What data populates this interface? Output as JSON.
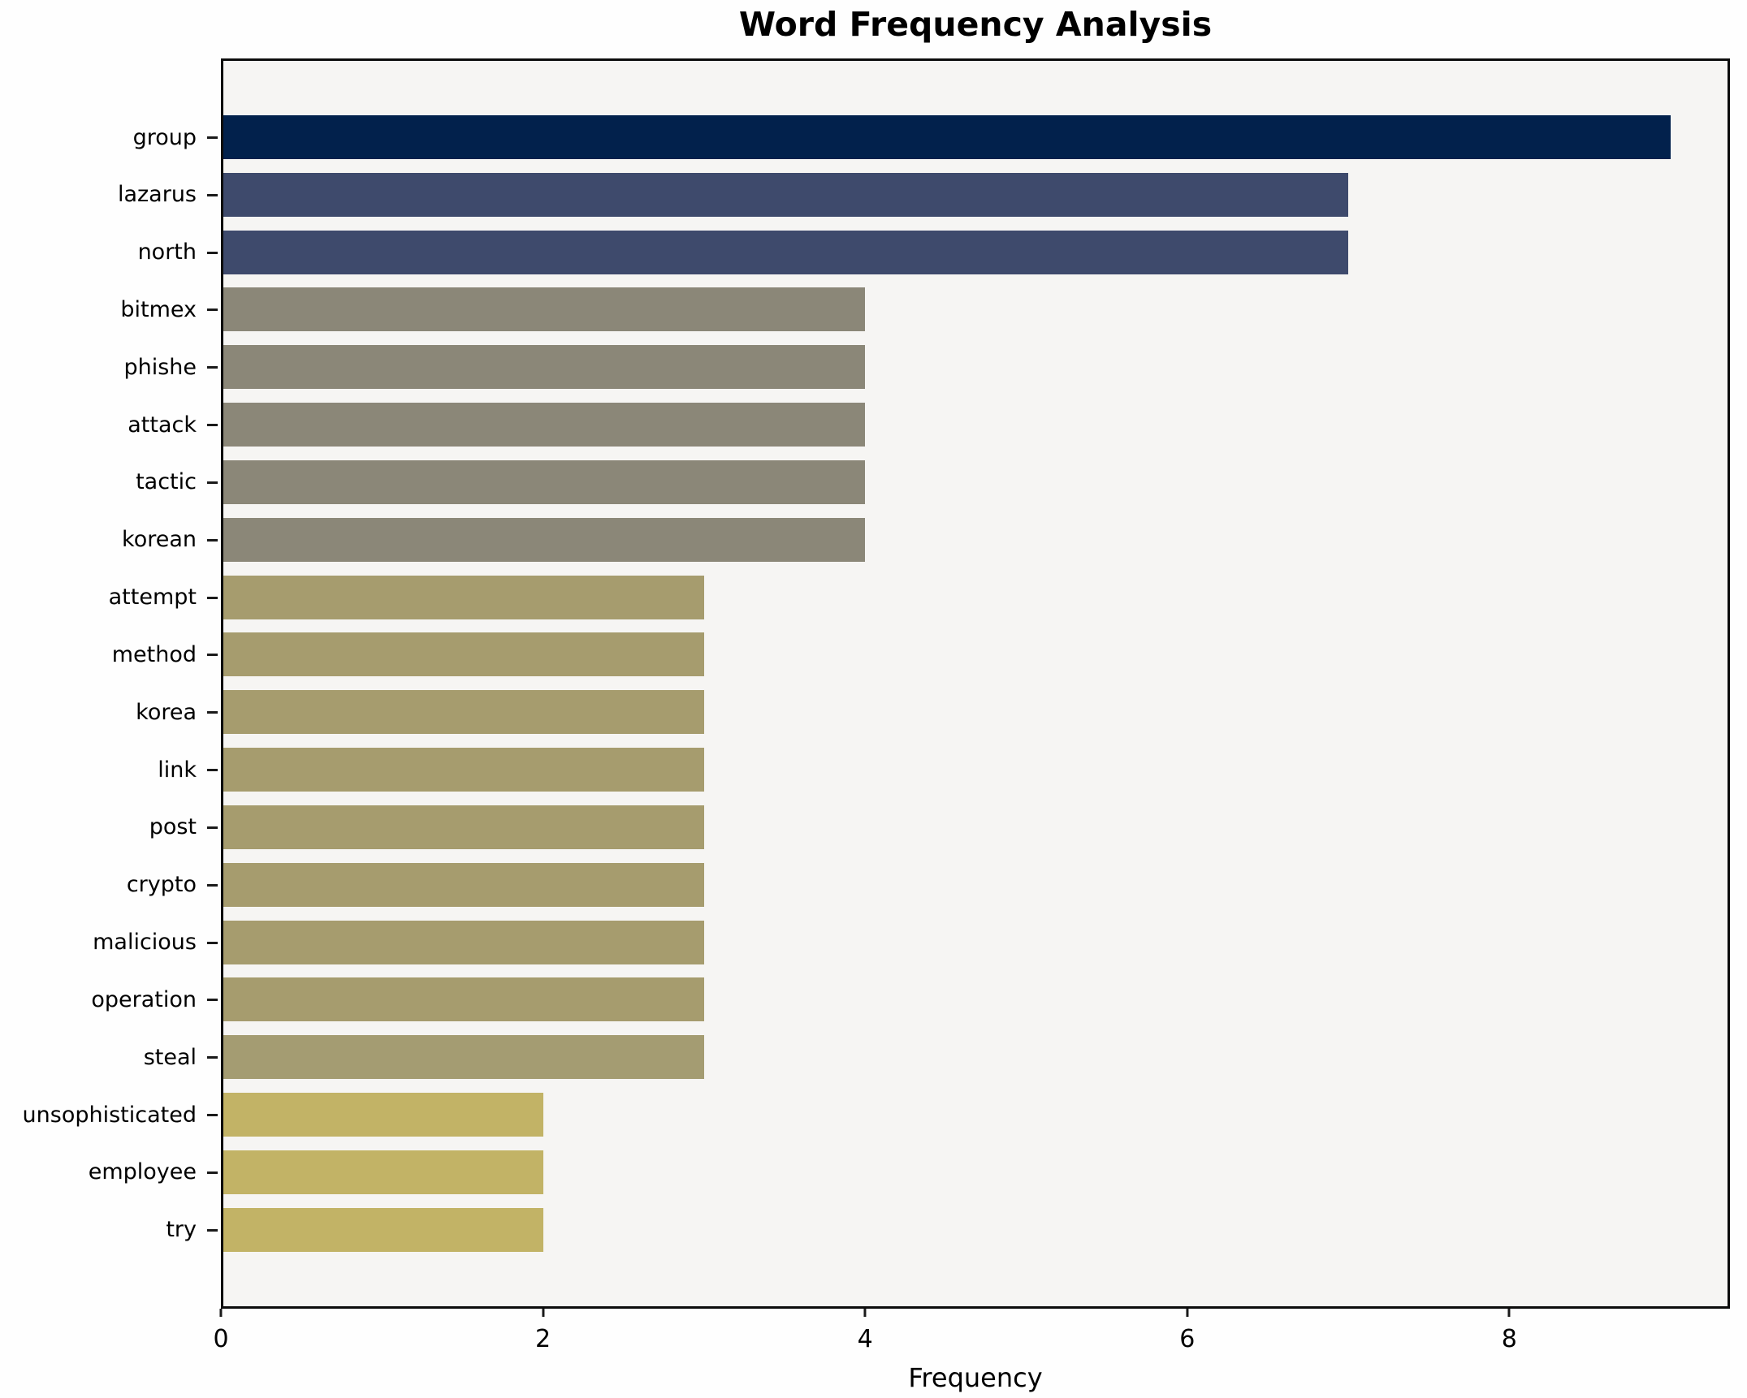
{
  "chart_data": {
    "type": "bar",
    "orientation": "horizontal",
    "title": "Word Frequency Analysis",
    "xlabel": "Frequency",
    "ylabel": "",
    "xlim": [
      0,
      9.37
    ],
    "x_ticks": [
      0,
      2,
      4,
      6,
      8
    ],
    "grid": false,
    "legend": "none",
    "categories": [
      "group",
      "lazarus",
      "north",
      "bitmex",
      "phishe",
      "attack",
      "tactic",
      "korean",
      "attempt",
      "method",
      "korea",
      "link",
      "post",
      "crypto",
      "malicious",
      "operation",
      "steal",
      "unsophisticated",
      "employee",
      "try"
    ],
    "values": [
      9,
      7,
      7,
      4,
      4,
      4,
      4,
      4,
      3,
      3,
      3,
      3,
      3,
      3,
      3,
      3,
      3,
      2,
      2,
      2
    ],
    "bar_colors": [
      "#02214c",
      "#3e4a6c",
      "#3e4a6c",
      "#8b8778",
      "#8b8778",
      "#8b8778",
      "#8b8778",
      "#8b8778",
      "#a69c6e",
      "#a69c6e",
      "#a69c6e",
      "#a69c6e",
      "#a69c6e",
      "#a69c6e",
      "#a69c6e",
      "#a69c6e",
      "#a49c72",
      "#c2b366",
      "#c2b366",
      "#c2b366"
    ],
    "colors": {
      "plot_background": "#f6f5f3",
      "figure_background": "#fefefe",
      "spine": "#0c0c0c",
      "text": "#000000"
    }
  }
}
